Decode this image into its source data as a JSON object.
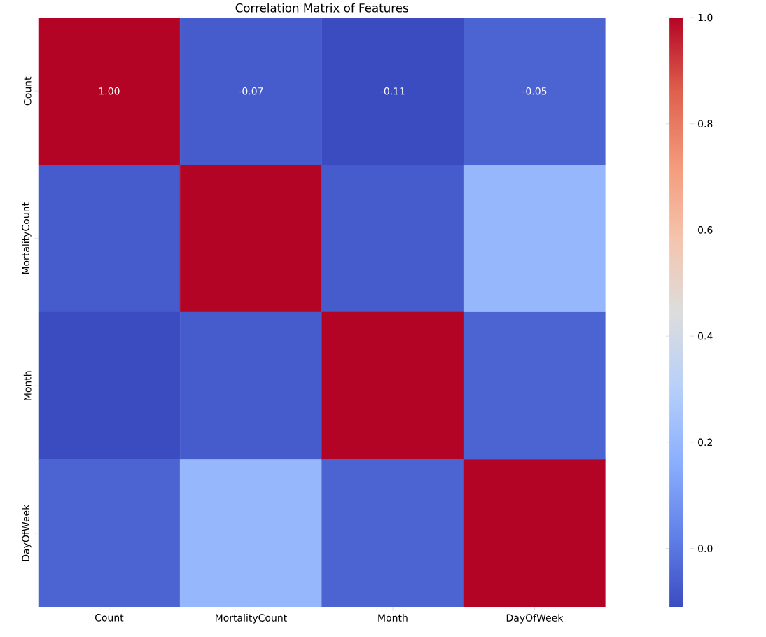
{
  "chart_data": {
    "type": "heatmap",
    "title": "Correlation Matrix of Features",
    "categories": [
      "Count",
      "MortalityCount",
      "Month",
      "DayOfWeek"
    ],
    "y_categories": [
      "Count",
      "MortalityCount",
      "Month",
      "DayOfWeek"
    ],
    "cells": [
      [
        1.0,
        -0.07,
        -0.11,
        -0.05
      ],
      [
        -0.07,
        1.0,
        -0.07,
        0.2
      ],
      [
        -0.11,
        -0.07,
        1.0,
        -0.05
      ],
      [
        -0.05,
        0.2,
        -0.05,
        1.0
      ]
    ],
    "cell_labels": [
      [
        "1.00",
        "-0.07",
        "-0.11",
        "-0.05"
      ],
      [
        null,
        null,
        null,
        null
      ],
      [
        null,
        null,
        null,
        null
      ],
      [
        null,
        null,
        null,
        null
      ]
    ],
    "clim": [
      -0.11,
      1.0
    ],
    "cticks": [
      {
        "value": 0.0,
        "label": "0.0"
      },
      {
        "value": 0.2,
        "label": "0.2"
      },
      {
        "value": 0.4,
        "label": "0.4"
      },
      {
        "value": 0.6,
        "label": "0.6"
      },
      {
        "value": 0.8,
        "label": "0.8"
      },
      {
        "value": 1.0,
        "label": "1.0"
      }
    ]
  }
}
